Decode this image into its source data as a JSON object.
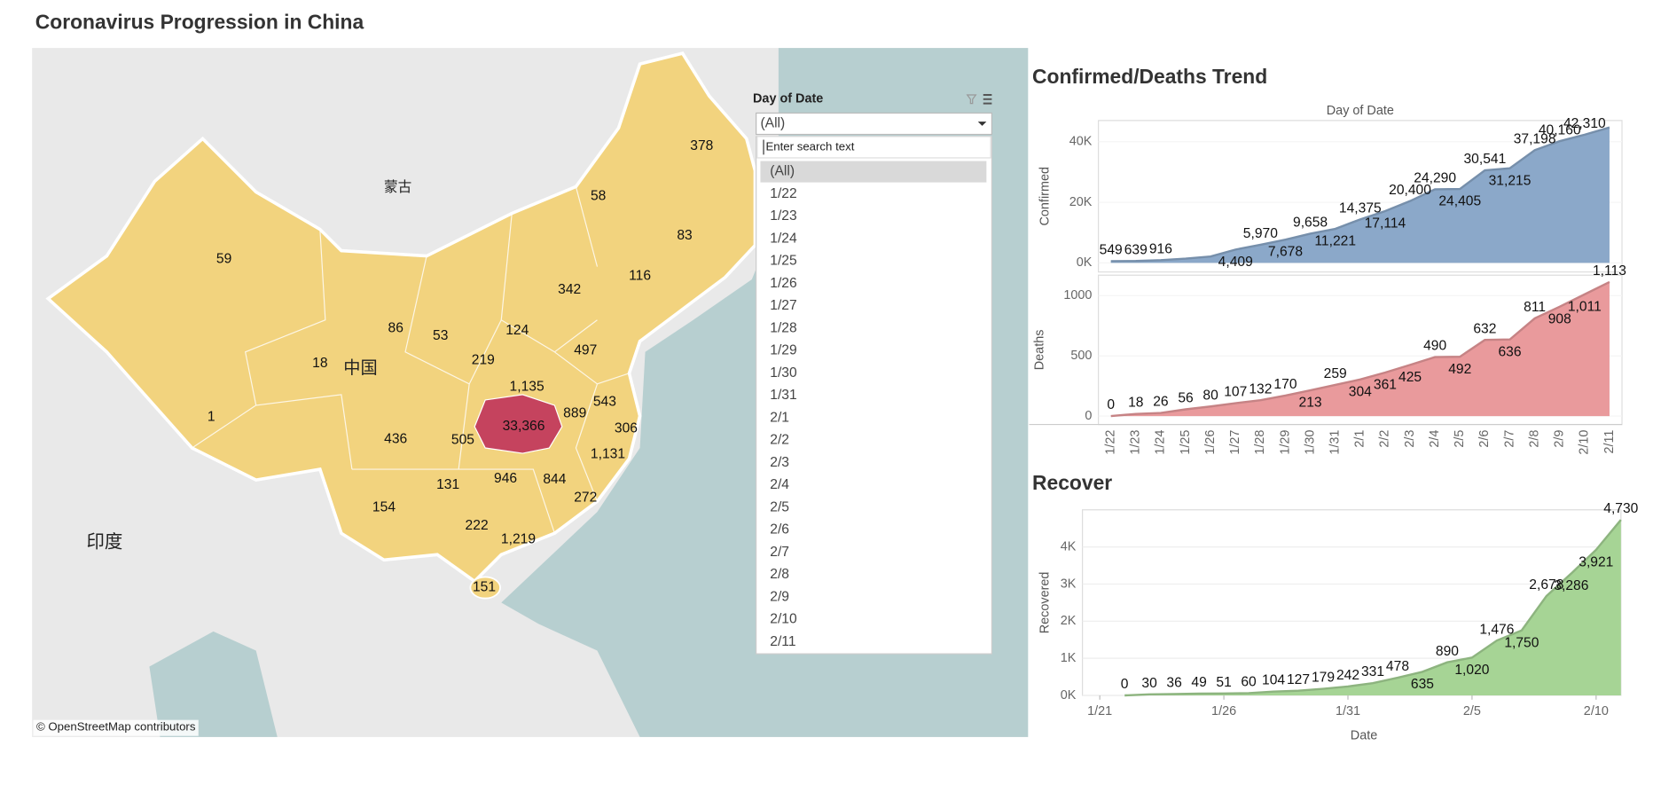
{
  "title": "Coronavirus Progression in China",
  "map": {
    "labels": [
      "378",
      "58",
      "83",
      "59",
      "116",
      "342",
      "86",
      "53",
      "124",
      "497",
      "18",
      "219",
      "1,135",
      "889",
      "543",
      "1",
      "33,366",
      "306",
      "436",
      "505",
      "1,131",
      "946",
      "844",
      "131",
      "272",
      "154",
      "222",
      "1,219",
      "151"
    ],
    "place_names": [
      "蒙古",
      "中国",
      "印度"
    ],
    "attribution": "© OpenStreetMap contributors"
  },
  "filter": {
    "title": "Day of Date",
    "selected": "(All)",
    "search_placeholder": "Enter search text",
    "options": [
      "(All)",
      "1/22",
      "1/23",
      "1/24",
      "1/25",
      "1/26",
      "1/27",
      "1/28",
      "1/29",
      "1/30",
      "1/31",
      "2/1",
      "2/2",
      "2/3",
      "2/4",
      "2/5",
      "2/6",
      "2/7",
      "2/8",
      "2/9",
      "2/10",
      "2/11"
    ]
  },
  "chart_data": [
    {
      "type": "area",
      "title": "Confirmed/Deaths  Trend",
      "x_label": "Day of Date",
      "y_label": "Confirmed",
      "color": "#8ba8c9",
      "values": [
        549,
        639,
        916,
        1400,
        2100,
        4409,
        5970,
        7678,
        9658,
        11221,
        14375,
        17114,
        20400,
        24290,
        24405,
        30541,
        31215,
        37198,
        40160,
        42310,
        44700
      ],
      "value_labels": [
        "549",
        "639",
        "916",
        null,
        null,
        "4,409",
        "5,970",
        "7,678",
        "9,658",
        "11,221",
        "14,375",
        "17,114",
        "20,400",
        "24,290",
        "24,405",
        "30,541",
        "31,215",
        "37,198",
        "40,160",
        "42,310",
        null
      ],
      "ylim": [
        -3000,
        47000
      ],
      "yticks": [
        {
          "value": 0,
          "label": "0K"
        },
        {
          "value": 20000,
          "label": "20K"
        },
        {
          "value": 40000,
          "label": "40K"
        }
      ]
    },
    {
      "type": "area",
      "y_label": "Deaths",
      "color": "#e99a9c",
      "categories": [
        "1/22",
        "1/23",
        "1/24",
        "1/25",
        "1/26",
        "1/27",
        "1/28",
        "1/29",
        "1/30",
        "1/31",
        "2/1",
        "2/2",
        "2/3",
        "2/4",
        "2/5",
        "2/6",
        "2/7",
        "2/8",
        "2/9",
        "2/10",
        "2/11"
      ],
      "values": [
        0,
        18,
        26,
        56,
        80,
        107,
        132,
        170,
        213,
        259,
        304,
        361,
        425,
        490,
        492,
        632,
        636,
        811,
        908,
        1011,
        1113
      ],
      "value_labels": [
        "0",
        "18",
        "26",
        "56",
        "80",
        "107",
        "132",
        "170",
        "213",
        "259",
        "304",
        "361",
        "425",
        "490",
        "492",
        "632",
        "636",
        "811",
        "908",
        "1,011",
        "1,113"
      ],
      "ylim": [
        -70,
        1170
      ],
      "yticks": [
        0,
        500,
        1000
      ]
    },
    {
      "type": "area",
      "title": "Recover",
      "x_label": "Date",
      "y_label": "Recovered",
      "color": "#a6d495",
      "x": [
        "1/22",
        "1/23",
        "1/24",
        "1/25",
        "1/26",
        "1/27",
        "1/28",
        "1/29",
        "1/30",
        "1/31",
        "2/1",
        "2/2",
        "2/3",
        "2/4",
        "2/5",
        "2/6",
        "2/7",
        "2/8",
        "2/9",
        "2/10",
        "2/11"
      ],
      "values": [
        0,
        30,
        36,
        49,
        51,
        60,
        104,
        127,
        179,
        242,
        331,
        478,
        635,
        890,
        1020,
        1476,
        1750,
        2678,
        3286,
        3921,
        4730
      ],
      "value_labels": [
        "0",
        "30",
        "36",
        "49",
        "51",
        "60",
        "104",
        "127",
        "179",
        "242",
        "331",
        "478",
        "635",
        "890",
        "1,020",
        "1,476",
        "1,750",
        "2,678",
        "3,286",
        "3,921",
        "4,730"
      ],
      "xlim": [
        "1/21",
        "2/11"
      ],
      "xticks": [
        "1/21",
        "1/26",
        "1/31",
        "2/5",
        "2/10"
      ],
      "ylim": [
        0,
        5000
      ],
      "yticks": [
        {
          "value": 0,
          "label": "0K"
        },
        {
          "value": 1000,
          "label": "1K"
        },
        {
          "value": 2000,
          "label": "2K"
        },
        {
          "value": 3000,
          "label": "3K"
        },
        {
          "value": 4000,
          "label": "4K"
        }
      ],
      "grid": true
    }
  ]
}
